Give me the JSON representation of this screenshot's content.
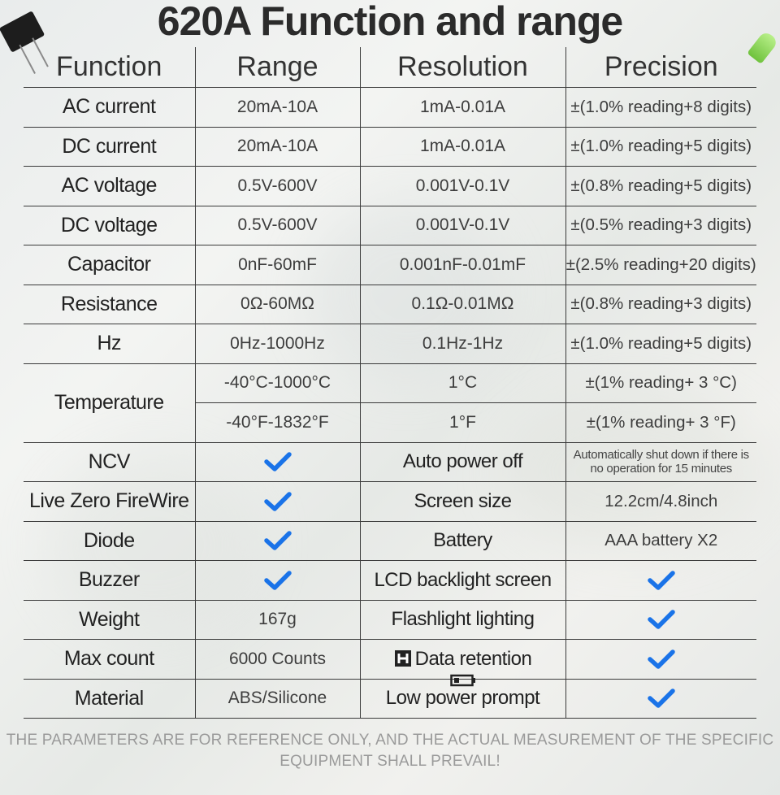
{
  "title": "620A Function and range",
  "headers": [
    "Function",
    "Range",
    "Resolution",
    "Precision"
  ],
  "rows": [
    {
      "function": "AC current",
      "range": "20mA-10A",
      "resolution": "1mA-0.01A",
      "precision": "±(1.0% reading+8 digits)"
    },
    {
      "function": "DC current",
      "range": "20mA-10A",
      "resolution": "1mA-0.01A",
      "precision": "±(1.0% reading+5 digits)"
    },
    {
      "function": "AC voltage",
      "range": "0.5V-600V",
      "resolution": "0.001V-0.1V",
      "precision": "±(0.8% reading+5 digits)"
    },
    {
      "function": "DC voltage",
      "range": "0.5V-600V",
      "resolution": "0.001V-0.1V",
      "precision": "±(0.5% reading+3 digits)"
    },
    {
      "function": "Capacitor",
      "range": "0nF-60mF",
      "resolution": "0.001nF-0.01mF",
      "precision": "±(2.5% reading+20 digits)"
    },
    {
      "function": "Resistance",
      "range": "0Ω-60MΩ",
      "resolution": "0.1Ω-0.01MΩ",
      "precision": "±(0.8% reading+3 digits)"
    },
    {
      "function": "Hz",
      "range": "0Hz-1000Hz",
      "resolution": "0.1Hz-1Hz",
      "precision": "±(1.0% reading+5 digits)"
    }
  ],
  "temperature": {
    "function": "Temperature",
    "celsius": {
      "range": "-40°C-1000°C",
      "resolution": "1°C",
      "precision": "±(1% reading+ 3 °C)"
    },
    "fahrenheit": {
      "range": "-40°F-1832°F",
      "resolution": "1°F",
      "precision": "±(1% reading+ 3 °F)"
    }
  },
  "features": [
    {
      "left": "NCV",
      "left_value": "check",
      "right": "Auto power off",
      "right_value": "Automatically shut down if there is no operation for 15 minutes"
    },
    {
      "left": "Live Zero FireWire",
      "left_value": "check",
      "right": "Screen size",
      "right_value": "12.2cm/4.8inch"
    },
    {
      "left": "Diode",
      "left_value": "check",
      "right": "Battery",
      "right_value": "AAA battery X2"
    },
    {
      "left": "Buzzer",
      "left_value": "check",
      "right": "LCD backlight screen",
      "right_value": "check"
    },
    {
      "left": "Weight",
      "left_value": "167g",
      "right": "Flashlight lighting",
      "right_value": "check"
    },
    {
      "left": "Max count",
      "left_value": "6000 Counts",
      "right": "Data retention",
      "right_icon": "hold-icon",
      "right_value": "check"
    },
    {
      "left": "Material",
      "left_value": "ABS/Silicone",
      "right": "Low power prompt",
      "right_icon": "battery-icon",
      "right_value": "check"
    }
  ],
  "footer": "THE PARAMETERS ARE FOR REFERENCE ONLY, AND THE ACTUAL MEASUREMENT OF THE SPECIFIC EQUIPMENT SHALL PREVAIL!",
  "colors": {
    "check": "#1a73e8",
    "grid": "#3a3a3a",
    "footer": "#9a9a9a"
  }
}
